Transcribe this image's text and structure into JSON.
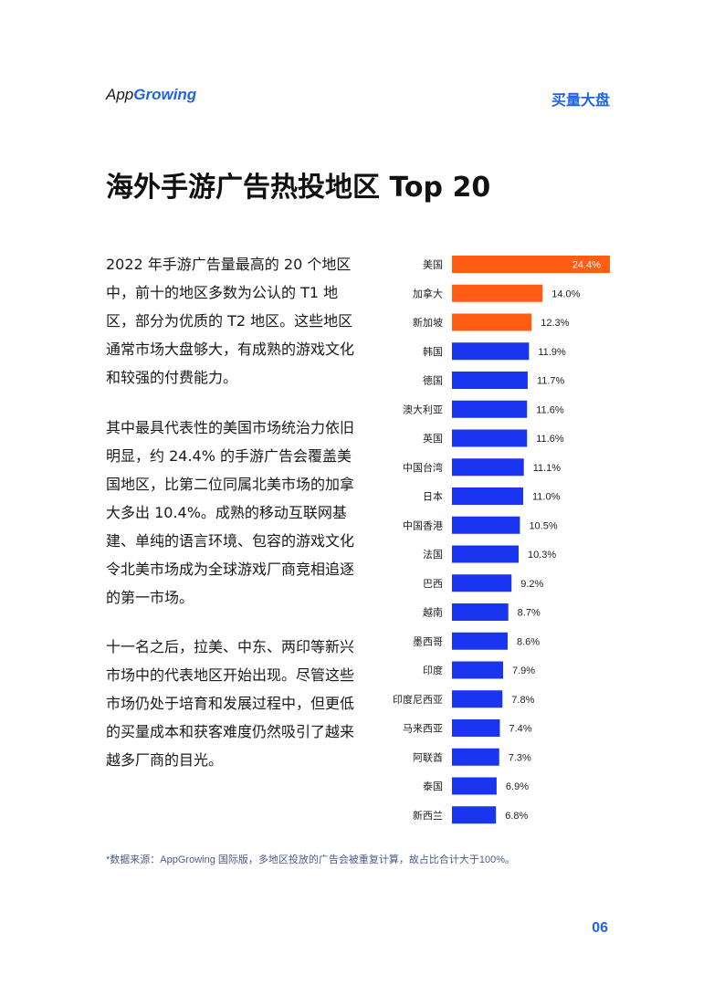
{
  "header": {
    "logo_text_a": "App",
    "logo_text_b": "Growing",
    "section_tag": "买量大盘"
  },
  "title": "海外手游广告热投地区 Top 20",
  "paragraphs": [
    "2022 年手游广告量最高的 20 个地区中，前十的地区多数为公认的 T1 地区，部分为优质的 T2 地区。这些地区通常市场大盘够大，有成熟的游戏文化和较强的付费能力。",
    "其中最具代表性的美国市场统治力依旧明显，约 24.4% 的手游广告会覆盖美国地区，比第二位同属北美市场的加拿大多出 10.4%。成熟的移动互联网基建、单纯的语言环境、包容的游戏文化令北美市场成为全球游戏厂商竞相追逐的第一市场。",
    "十一名之后，拉美、中东、两印等新兴市场中的代表地区开始出现。尽管这些市场仍处于培育和发展过程中，但更低的买量成本和获客难度仍然吸引了越来越多厂商的目光。"
  ],
  "footnote": "*数据来源：AppGrowing 国际版，多地区投放的广告会被重复计算，故占比合计大于100%。",
  "page_number": "06",
  "colors": {
    "highlight": "#ff5c14",
    "normal": "#1a35f0",
    "accent": "#1f63e8"
  },
  "chart_data": {
    "type": "bar",
    "orientation": "horizontal",
    "categories": [
      "美国",
      "加拿大",
      "新加坡",
      "韩国",
      "德国",
      "澳大利亚",
      "英国",
      "中国台湾",
      "日本",
      "中国香港",
      "法国",
      "巴西",
      "越南",
      "墨西哥",
      "印度",
      "印度尼西亚",
      "马来西亚",
      "阿联酋",
      "泰国",
      "新西兰"
    ],
    "values": [
      24.4,
      14.0,
      12.3,
      11.9,
      11.7,
      11.6,
      11.6,
      11.1,
      11.0,
      10.5,
      10.3,
      9.2,
      8.7,
      8.6,
      7.9,
      7.8,
      7.4,
      7.3,
      6.9,
      6.8
    ],
    "value_labels": [
      "24.4%",
      "14.0%",
      "12.3%",
      "11.9%",
      "11.7%",
      "11.6%",
      "11.6%",
      "11.1%",
      "11.0%",
      "10.5%",
      "10.3%",
      "9.2%",
      "8.7%",
      "8.6%",
      "7.9%",
      "7.8%",
      "7.4%",
      "7.3%",
      "6.9%",
      "6.8%"
    ],
    "highlighted_top": 3,
    "xlim": [
      0,
      24.4
    ],
    "grid": false,
    "legend": "none"
  }
}
